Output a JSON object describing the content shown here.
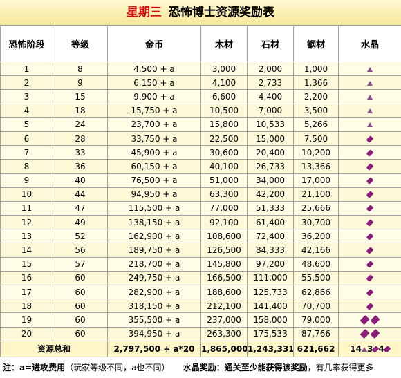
{
  "title": {
    "day": "星期三",
    "text": "恐怖博士资源奖励表"
  },
  "table": {
    "headers": [
      "恐怖阶段",
      "等级",
      "金币",
      "木材",
      "石材",
      "钢材",
      "水晶"
    ],
    "rows": [
      [
        1,
        8,
        "4,500 + a",
        "3,000",
        "2,000",
        "1,000"
      ],
      [
        2,
        9,
        "6,150 + a",
        "4,100",
        "2,733",
        "1,366"
      ],
      [
        3,
        15,
        "9,900 + a",
        "6,600",
        "4,400",
        "2,200"
      ],
      [
        4,
        18,
        "15,750 + a",
        "10,500",
        "7,000",
        "3,500"
      ],
      [
        5,
        24,
        "23,700 + a",
        "15,800",
        "10,533",
        "5,266"
      ],
      [
        6,
        28,
        "33,750 + a",
        "22,500",
        "15,000",
        "7,500"
      ],
      [
        7,
        33,
        "45,900 + a",
        "30,600",
        "20,400",
        "10,200"
      ],
      [
        8,
        36,
        "60,150 + a",
        "40,100",
        "26,733",
        "13,366"
      ],
      [
        9,
        40,
        "76,500 + a",
        "51,000",
        "34,000",
        "17,000"
      ],
      [
        10,
        44,
        "94,950 + a",
        "63,300",
        "42,200",
        "21,100"
      ],
      [
        11,
        47,
        "115,500 + a",
        "77,000",
        "51,333",
        "25,666"
      ],
      [
        12,
        49,
        "138,150 + a",
        "92,100",
        "61,400",
        "30,700"
      ],
      [
        13,
        52,
        "162,900 + a",
        "108,600",
        "72,400",
        "36,200"
      ],
      [
        14,
        56,
        "189,750 + a",
        "126,500",
        "84,333",
        "42,166"
      ],
      [
        15,
        57,
        "218,700 + a",
        "145,800",
        "97,200",
        "48,600"
      ],
      [
        16,
        60,
        "249,750 + a",
        "166,500",
        "111,000",
        "55,500"
      ],
      [
        17,
        60,
        "282,900 + a",
        "188,600",
        "125,733",
        "62,866"
      ],
      [
        18,
        60,
        "318,150 + a",
        "212,100",
        "141,400",
        "70,700"
      ],
      [
        19,
        60,
        "355,500 + a",
        "237,000",
        "158,000",
        "79,000"
      ],
      [
        20,
        60,
        "394,950 + a",
        "263,300",
        "175,533",
        "87,766"
      ]
    ],
    "total": {
      "label": "资源总和",
      "gold": "2,797,500 + a*20",
      "wood": "1,865,000",
      "stone": "1,243,331",
      "steel": "621,662",
      "crystal": [
        "14",
        "3",
        "4"
      ]
    }
  },
  "footer": {
    "note_bold": "注：a=进攻费用",
    "note": "（玩家等级不同，a也不同）",
    "crystal_bold": "水晶奖励：通关至少能获得该奖励",
    "crystal": "，有几率获得更多"
  }
}
